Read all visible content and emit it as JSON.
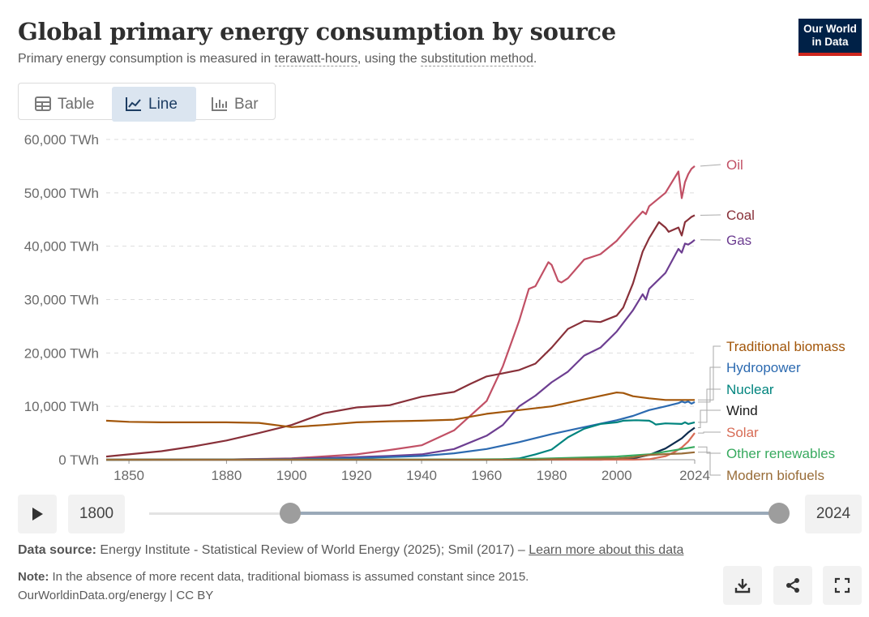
{
  "header": {
    "title": "Global primary energy consumption by source",
    "subtitle_prefix": "Primary energy consumption is measured in ",
    "subtitle_term1": "terawatt-hours",
    "subtitle_mid": ", using the ",
    "subtitle_term2": "substitution method",
    "subtitle_suffix": ".",
    "logo_line1": "Our World",
    "logo_line2": "in Data"
  },
  "tabs": [
    {
      "label": "Table",
      "icon": "table-icon"
    },
    {
      "label": "Line",
      "icon": "line-chart-icon",
      "active": true
    },
    {
      "label": "Bar",
      "icon": "bar-chart-icon"
    }
  ],
  "timeline": {
    "start_year": "1800",
    "end_year": "2024"
  },
  "footer": {
    "source_label": "Data source:",
    "source_text": "Energy Institute - Statistical Review of World Energy (2025); Smil (2017) –",
    "learn_more": "Learn more about this data",
    "note_label": "Note:",
    "note_text": "In the absence of more recent data, traditional biomass is assumed constant since 2015.",
    "credit": "OurWorldinData.org/energy | CC BY"
  },
  "chart_data": {
    "type": "line",
    "title": "Global primary energy consumption by source",
    "xlabel": "",
    "ylabel": "",
    "xlim": [
      1843,
      2024
    ],
    "ylim": [
      0,
      60000
    ],
    "x_ticks": [
      1850,
      1880,
      1900,
      1920,
      1940,
      1960,
      1980,
      2000,
      2024
    ],
    "y_ticks": [
      0,
      10000,
      20000,
      30000,
      40000,
      50000,
      60000
    ],
    "y_tick_labels": [
      "0 TWh",
      "10,000 TWh",
      "20,000 TWh",
      "30,000 TWh",
      "40,000 TWh",
      "50,000 TWh",
      "60,000 TWh"
    ],
    "grid": "horizontal dashed",
    "series": [
      {
        "name": "Oil",
        "color": "#c15065",
        "points": [
          [
            1843,
            0
          ],
          [
            1860,
            0
          ],
          [
            1880,
            50
          ],
          [
            1900,
            250
          ],
          [
            1920,
            1000
          ],
          [
            1930,
            1800
          ],
          [
            1940,
            2700
          ],
          [
            1950,
            5500
          ],
          [
            1960,
            11000
          ],
          [
            1965,
            17500
          ],
          [
            1970,
            26000
          ],
          [
            1973,
            32000
          ],
          [
            1975,
            32500
          ],
          [
            1979,
            37000
          ],
          [
            1980,
            36500
          ],
          [
            1982,
            33500
          ],
          [
            1983,
            33200
          ],
          [
            1985,
            34000
          ],
          [
            1990,
            37500
          ],
          [
            1995,
            38500
          ],
          [
            2000,
            41000
          ],
          [
            2005,
            44500
          ],
          [
            2008,
            46500
          ],
          [
            2009,
            46000
          ],
          [
            2010,
            47500
          ],
          [
            2015,
            50000
          ],
          [
            2019,
            54000
          ],
          [
            2020,
            49000
          ],
          [
            2021,
            52000
          ],
          [
            2022,
            53500
          ],
          [
            2023,
            54500
          ],
          [
            2024,
            55000
          ]
        ]
      },
      {
        "name": "Coal",
        "color": "#883039",
        "points": [
          [
            1843,
            600
          ],
          [
            1850,
            1000
          ],
          [
            1860,
            1600
          ],
          [
            1870,
            2500
          ],
          [
            1880,
            3600
          ],
          [
            1890,
            5000
          ],
          [
            1900,
            6500
          ],
          [
            1910,
            8700
          ],
          [
            1920,
            9800
          ],
          [
            1930,
            10200
          ],
          [
            1940,
            11800
          ],
          [
            1950,
            12700
          ],
          [
            1955,
            14200
          ],
          [
            1960,
            15600
          ],
          [
            1965,
            16200
          ],
          [
            1970,
            16800
          ],
          [
            1975,
            18000
          ],
          [
            1980,
            21000
          ],
          [
            1985,
            24500
          ],
          [
            1990,
            26000
          ],
          [
            1995,
            25800
          ],
          [
            2000,
            27000
          ],
          [
            2002,
            28500
          ],
          [
            2005,
            33000
          ],
          [
            2008,
            39000
          ],
          [
            2010,
            41500
          ],
          [
            2013,
            44500
          ],
          [
            2015,
            43500
          ],
          [
            2016,
            42700
          ],
          [
            2019,
            43500
          ],
          [
            2020,
            42000
          ],
          [
            2021,
            44500
          ],
          [
            2022,
            45000
          ],
          [
            2023,
            45500
          ],
          [
            2024,
            45800
          ]
        ]
      },
      {
        "name": "Gas",
        "color": "#6d3e91",
        "points": [
          [
            1843,
            0
          ],
          [
            1880,
            50
          ],
          [
            1900,
            200
          ],
          [
            1920,
            500
          ],
          [
            1930,
            700
          ],
          [
            1940,
            1000
          ],
          [
            1950,
            2000
          ],
          [
            1960,
            4500
          ],
          [
            1965,
            6500
          ],
          [
            1970,
            10000
          ],
          [
            1975,
            12000
          ],
          [
            1980,
            14500
          ],
          [
            1985,
            16500
          ],
          [
            1990,
            19500
          ],
          [
            1995,
            21000
          ],
          [
            2000,
            24000
          ],
          [
            2005,
            28000
          ],
          [
            2008,
            31000
          ],
          [
            2009,
            30000
          ],
          [
            2010,
            32000
          ],
          [
            2015,
            35000
          ],
          [
            2019,
            39500
          ],
          [
            2020,
            38800
          ],
          [
            2021,
            40500
          ],
          [
            2022,
            40300
          ],
          [
            2023,
            40700
          ],
          [
            2024,
            41200
          ]
        ]
      },
      {
        "name": "Traditional biomass",
        "color": "#a2560a",
        "points": [
          [
            1843,
            7300
          ],
          [
            1850,
            7100
          ],
          [
            1860,
            7000
          ],
          [
            1870,
            7000
          ],
          [
            1880,
            7000
          ],
          [
            1890,
            6900
          ],
          [
            1900,
            6100
          ],
          [
            1910,
            6500
          ],
          [
            1920,
            7000
          ],
          [
            1930,
            7200
          ],
          [
            1940,
            7300
          ],
          [
            1950,
            7500
          ],
          [
            1960,
            8600
          ],
          [
            1970,
            9300
          ],
          [
            1980,
            10000
          ],
          [
            1990,
            11300
          ],
          [
            2000,
            12600
          ],
          [
            2002,
            12500
          ],
          [
            2005,
            11900
          ],
          [
            2010,
            11500
          ],
          [
            2015,
            11200
          ],
          [
            2024,
            11200
          ]
        ]
      },
      {
        "name": "Hydropower",
        "color": "#2c6ab0",
        "points": [
          [
            1843,
            0
          ],
          [
            1900,
            50
          ],
          [
            1920,
            300
          ],
          [
            1940,
            700
          ],
          [
            1950,
            1200
          ],
          [
            1960,
            2000
          ],
          [
            1970,
            3300
          ],
          [
            1980,
            4800
          ],
          [
            1990,
            6100
          ],
          [
            2000,
            7400
          ],
          [
            2005,
            8200
          ],
          [
            2010,
            9300
          ],
          [
            2015,
            10000
          ],
          [
            2019,
            10600
          ],
          [
            2020,
            10900
          ],
          [
            2021,
            10700
          ],
          [
            2022,
            10900
          ],
          [
            2023,
            10500
          ],
          [
            2024,
            10800
          ]
        ]
      },
      {
        "name": "Nuclear",
        "color": "#00847e",
        "points": [
          [
            1843,
            0
          ],
          [
            1960,
            0
          ],
          [
            1965,
            80
          ],
          [
            1970,
            250
          ],
          [
            1975,
            1000
          ],
          [
            1980,
            1900
          ],
          [
            1985,
            4200
          ],
          [
            1990,
            5800
          ],
          [
            1995,
            6700
          ],
          [
            2000,
            7000
          ],
          [
            2002,
            7300
          ],
          [
            2006,
            7400
          ],
          [
            2010,
            7300
          ],
          [
            2011,
            7000
          ],
          [
            2012,
            6600
          ],
          [
            2015,
            6800
          ],
          [
            2020,
            6700
          ],
          [
            2021,
            7000
          ],
          [
            2022,
            6700
          ],
          [
            2023,
            6850
          ],
          [
            2024,
            7000
          ]
        ]
      },
      {
        "name": "Wind",
        "color": "#0e2c4e",
        "points": [
          [
            1843,
            0
          ],
          [
            1995,
            0
          ],
          [
            2000,
            80
          ],
          [
            2005,
            250
          ],
          [
            2010,
            900
          ],
          [
            2015,
            2100
          ],
          [
            2020,
            4000
          ],
          [
            2022,
            5100
          ],
          [
            2024,
            6000
          ]
        ]
      },
      {
        "name": "Solar",
        "color": "#d76b55",
        "points": [
          [
            1843,
            0
          ],
          [
            2005,
            10
          ],
          [
            2010,
            90
          ],
          [
            2015,
            650
          ],
          [
            2018,
            1500
          ],
          [
            2020,
            2300
          ],
          [
            2022,
            3400
          ],
          [
            2024,
            5000
          ]
        ]
      },
      {
        "name": "Other renewables",
        "color": "#38aa5f",
        "points": [
          [
            1843,
            0
          ],
          [
            1950,
            50
          ],
          [
            1970,
            120
          ],
          [
            1980,
            250
          ],
          [
            1990,
            420
          ],
          [
            2000,
            600
          ],
          [
            2010,
            1000
          ],
          [
            2015,
            1500
          ],
          [
            2020,
            2000
          ],
          [
            2024,
            2400
          ]
        ]
      },
      {
        "name": "Modern biofuels",
        "color": "#996d39",
        "points": [
          [
            1843,
            0
          ],
          [
            1975,
            0
          ],
          [
            1980,
            100
          ],
          [
            1990,
            200
          ],
          [
            2000,
            250
          ],
          [
            2005,
            450
          ],
          [
            2010,
            900
          ],
          [
            2015,
            1050
          ],
          [
            2020,
            1150
          ],
          [
            2024,
            1400
          ]
        ]
      }
    ]
  }
}
